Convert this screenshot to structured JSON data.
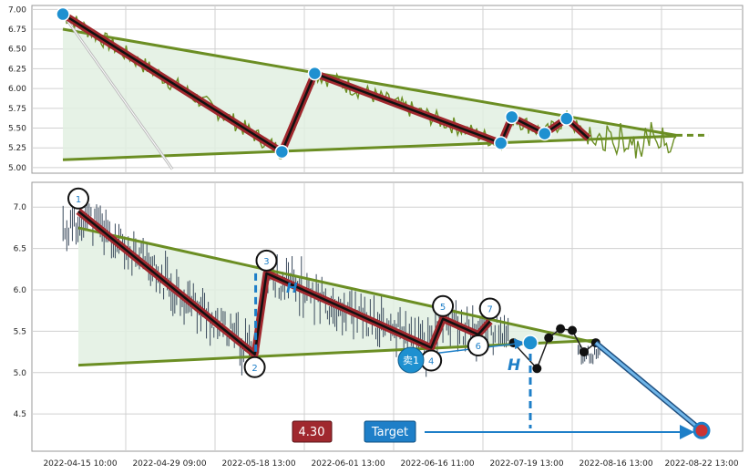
{
  "chart_data": {
    "type": "line",
    "colors": {
      "grid": "#d0d0d0",
      "border": "#999999",
      "price_line": "#6b8e23",
      "trend_line": "#6b8e23",
      "wedge_fill": "#e2f0e2",
      "pattern_outer": "#a0282e",
      "pattern_inner": "#111111",
      "node_blue": "#1e90d0",
      "blue_dash": "#1e7fc8",
      "badge_price_bg": "#a0282e",
      "badge_target_bg": "#1e7fc8"
    },
    "top_panel": {
      "y_ticks": [
        "7.00",
        "6.75",
        "6.50",
        "6.25",
        "6.00",
        "5.75",
        "5.50",
        "5.25",
        "5.00"
      ],
      "ylim": [
        4.93,
        7.05
      ],
      "pattern_points": [
        {
          "t": 0,
          "v": 6.94
        },
        {
          "t": 20,
          "v": 5.2
        },
        {
          "t": 23,
          "v": 6.19
        },
        {
          "t": 40,
          "v": 5.31
        },
        {
          "t": 41,
          "v": 5.64
        },
        {
          "t": 44,
          "v": 5.43
        },
        {
          "t": 46,
          "v": 5.62
        },
        {
          "t": 48,
          "v": 5.37
        }
      ],
      "upper_trendline": {
        "from": {
          "t": 0,
          "v": 6.75
        },
        "to": {
          "t": 56,
          "v": 5.41
        }
      },
      "lower_trendline": {
        "from": {
          "t": 0,
          "v": 5.1
        },
        "to": {
          "t": 56,
          "v": 5.4
        }
      },
      "dashed_extension": {
        "from": {
          "t": 56,
          "v": 5.41
        },
        "to": {
          "t": 59,
          "v": 5.41
        }
      }
    },
    "bottom_panel": {
      "y_ticks": [
        "7.0",
        "6.5",
        "6.0",
        "5.5",
        "5.0",
        "4.5"
      ],
      "ylim": [
        4.05,
        7.3
      ],
      "x_ticks": [
        "2022-04-15 10:00",
        "2022-04-29 09:00",
        "2022-05-18 13:00",
        "2022-06-01 13:00",
        "2022-06-16 11:00",
        "2022-07-19 13:00",
        "2022-08-16 13:00",
        "2022-08-22 13:00"
      ],
      "pattern_points": [
        {
          "label": "1",
          "t": 0,
          "v": 6.95
        },
        {
          "label": "2",
          "t": 15,
          "v": 5.22
        },
        {
          "label": "3",
          "t": 16,
          "v": 6.2
        },
        {
          "label": "4",
          "t": 30,
          "v": 5.3
        },
        {
          "label": "5",
          "t": 31,
          "v": 5.65
        },
        {
          "label": "6",
          "t": 34,
          "v": 5.46
        },
        {
          "label": "7",
          "t": 35,
          "v": 5.62
        }
      ],
      "upper_trendline": {
        "from": {
          "t": 0,
          "v": 6.75
        },
        "to": {
          "t": 44,
          "v": 5.36
        }
      },
      "lower_trendline": {
        "from": {
          "t": 0,
          "v": 5.09
        },
        "to": {
          "t": 44,
          "v": 5.39
        }
      },
      "forecast_path": [
        {
          "t": 37,
          "v": 5.36
        },
        {
          "t": 39,
          "v": 5.05
        },
        {
          "t": 40,
          "v": 5.42
        },
        {
          "t": 41,
          "v": 5.53
        },
        {
          "t": 42,
          "v": 5.51
        },
        {
          "t": 43,
          "v": 5.25
        },
        {
          "t": 44,
          "v": 5.36
        }
      ],
      "target_line": {
        "from": {
          "t": 44,
          "v": 5.36
        },
        "to": {
          "t": 53,
          "v": 4.3
        }
      },
      "sell_label": "卖1",
      "height_label": "H",
      "price_badge": "4.30",
      "target_button": "Target",
      "target_value": 4.3
    }
  }
}
